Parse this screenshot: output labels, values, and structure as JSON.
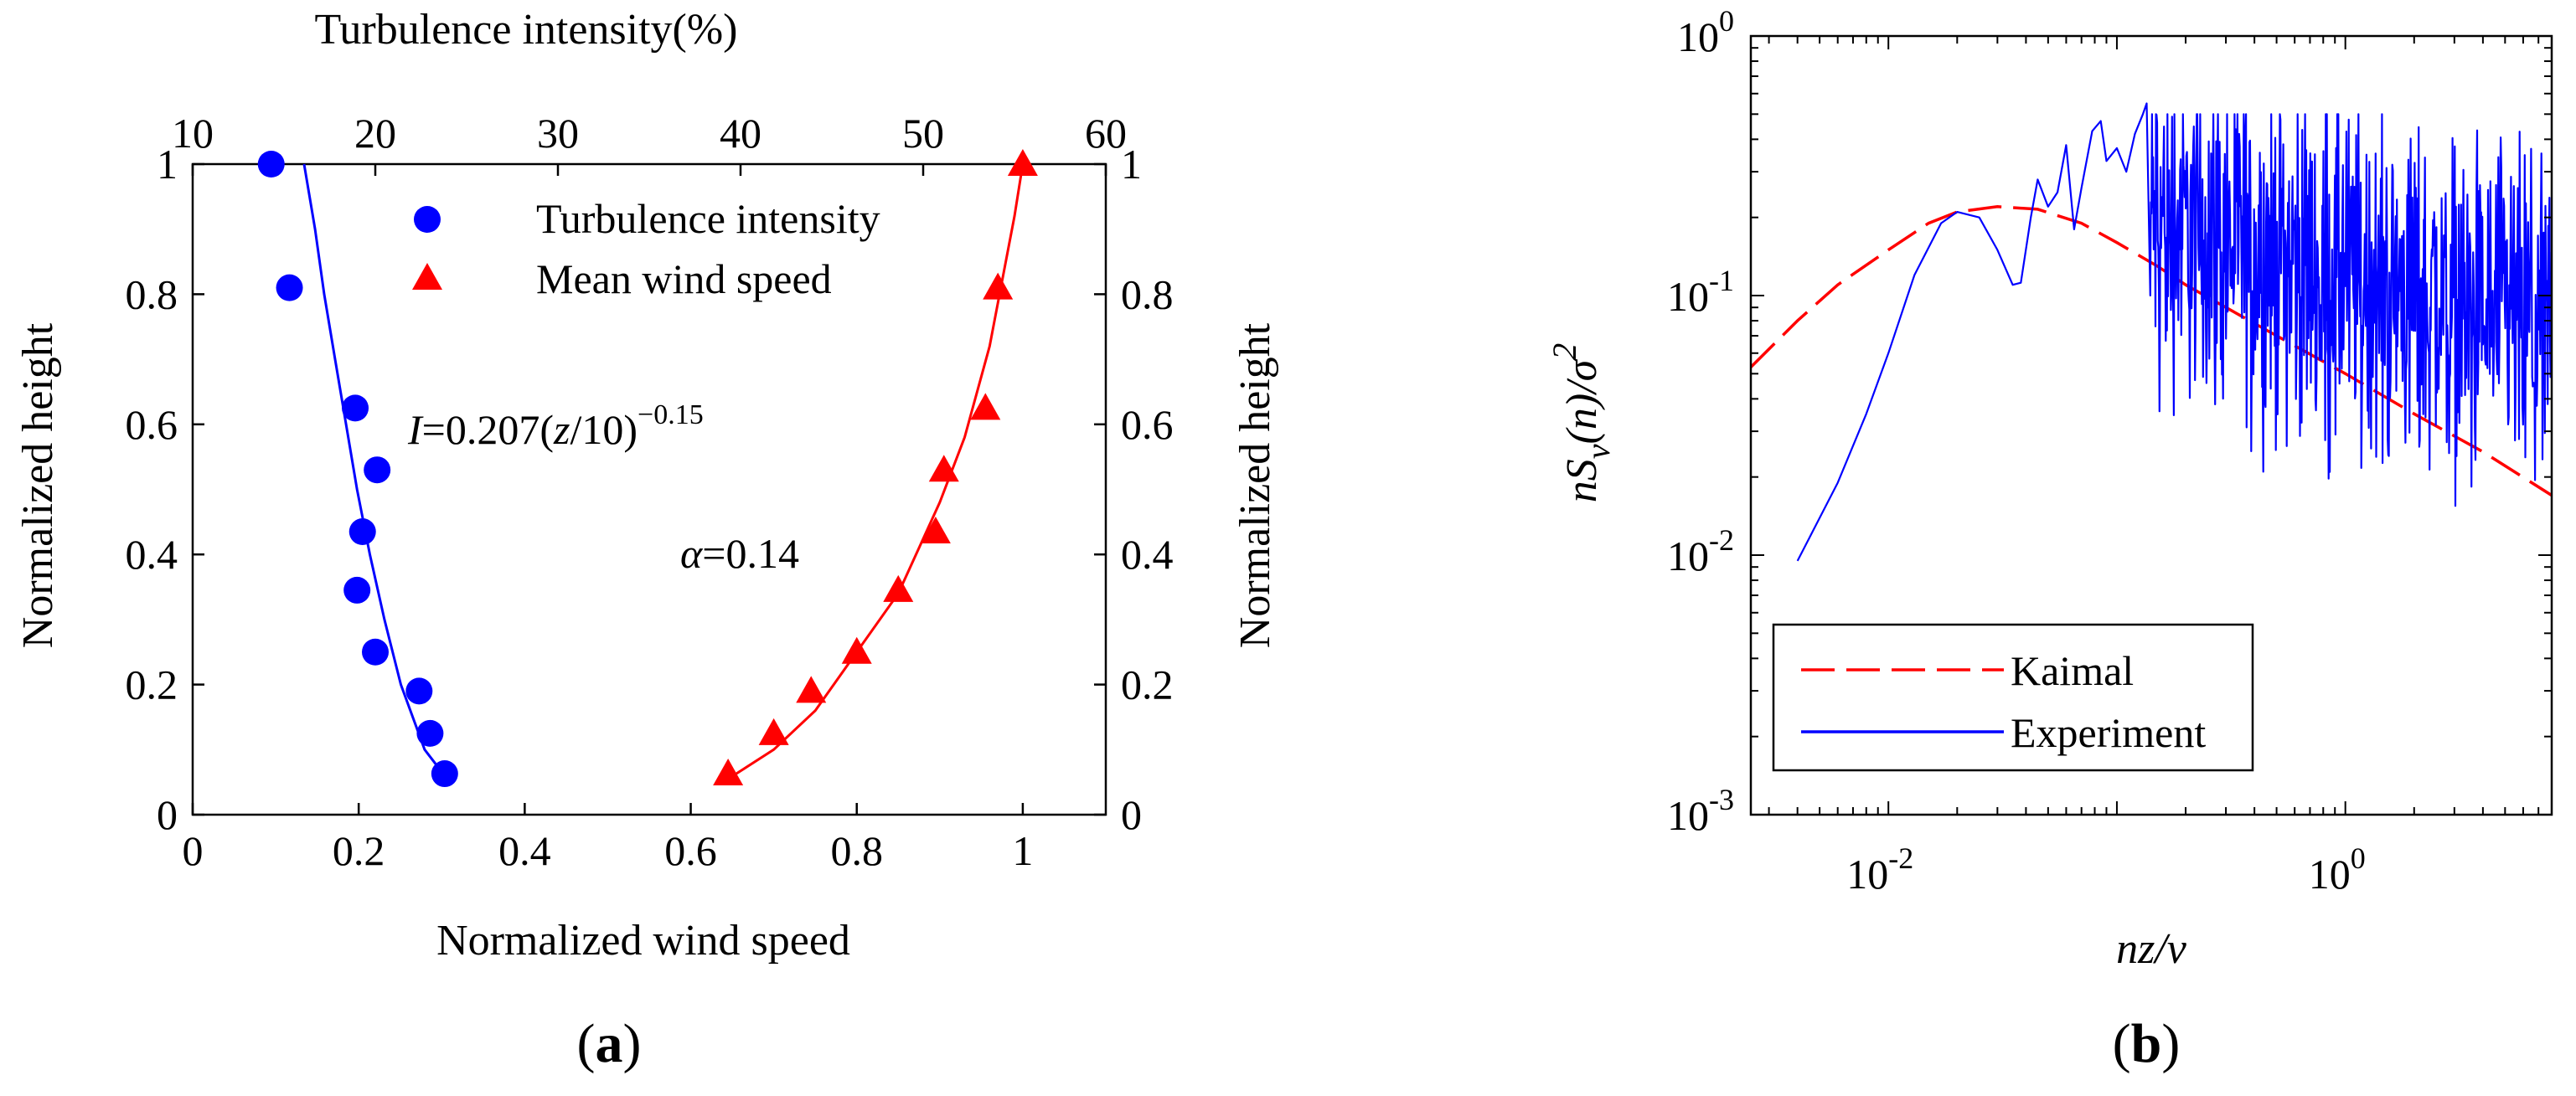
{
  "chart_data": [
    {
      "type": "scatter",
      "panel_label": "(a)",
      "panel_letter": "a",
      "xlabel": "Normalized wind speed",
      "ylabel": "Normalized height",
      "ylabel_right": "Normalized height",
      "top_xlabel": "Turbulence intensity(%)",
      "xlim": [
        0,
        1.1
      ],
      "ylim": [
        0,
        1
      ],
      "top_xlim": [
        10,
        60
      ],
      "x_ticks": [
        "0",
        "0.2",
        "0.4",
        "0.6",
        "0.8",
        "1"
      ],
      "y_ticks": [
        "0",
        "0.2",
        "0.4",
        "0.6",
        "0.8",
        "1"
      ],
      "top_x_ticks": [
        "10",
        "20",
        "30",
        "40",
        "50",
        "60"
      ],
      "annotation_power_law": {
        "prefix": "=0.207(",
        "var": "z",
        "mid": "/10)",
        "exp": "−0.15",
        "symbol": "I"
      },
      "annotation_alpha": {
        "symbol": "α",
        "value": "=0.14"
      },
      "series": [
        {
          "name": "Turbulence intensity",
          "color": "#0000ff",
          "marker": "circle",
          "x_axis": "top",
          "points": [
            [
              14.3,
              1.0
            ],
            [
              15.3,
              0.81
            ],
            [
              18.9,
              0.625
            ],
            [
              20.1,
              0.53
            ],
            [
              19.3,
              0.435
            ],
            [
              19.0,
              0.345
            ],
            [
              20.0,
              0.25
            ],
            [
              22.4,
              0.19
            ],
            [
              23.0,
              0.125
            ],
            [
              23.8,
              0.063
            ]
          ],
          "fit": [
            [
              16.1,
              1.0
            ],
            [
              16.7,
              0.9
            ],
            [
              17.2,
              0.8
            ],
            [
              17.8,
              0.7
            ],
            [
              18.4,
              0.6
            ],
            [
              19.0,
              0.5
            ],
            [
              19.7,
              0.4
            ],
            [
              20.5,
              0.3
            ],
            [
              21.4,
              0.2
            ],
            [
              22.7,
              0.1
            ],
            [
              23.8,
              0.06
            ]
          ]
        },
        {
          "name": "Mean wind speed",
          "color": "#ff0000",
          "marker": "triangle",
          "x_axis": "bottom",
          "points": [
            [
              0.645,
              0.063
            ],
            [
              0.7,
              0.125
            ],
            [
              0.745,
              0.19
            ],
            [
              0.8,
              0.25
            ],
            [
              0.85,
              0.345
            ],
            [
              0.895,
              0.435
            ],
            [
              0.905,
              0.53
            ],
            [
              0.955,
              0.625
            ],
            [
              0.97,
              0.81
            ],
            [
              1.0,
              1.0
            ]
          ],
          "fit": [
            [
              0.655,
              0.063
            ],
            [
              0.7,
              0.1
            ],
            [
              0.75,
              0.16
            ],
            [
              0.8,
              0.25
            ],
            [
              0.85,
              0.34
            ],
            [
              0.9,
              0.48
            ],
            [
              0.93,
              0.58
            ],
            [
              0.96,
              0.72
            ],
            [
              0.99,
              0.92
            ],
            [
              1.0,
              1.0
            ]
          ]
        }
      ]
    },
    {
      "type": "line",
      "panel_label": "(b)",
      "panel_letter": "b",
      "xlabel": "nz/v",
      "ylabel": "nS_v(n)/σ^2",
      "ylabel_parts": {
        "a": "nS",
        "sub": "v",
        "b": "(n)/",
        "sigma": "σ",
        "sup": "2"
      },
      "x_scale": "log",
      "y_scale": "log",
      "xlim": [
        0.0025,
        8
      ],
      "ylim": [
        0.001,
        1
      ],
      "x_ticks": [
        {
          "base": "10",
          "exp": "-2",
          "value": 0.01
        },
        {
          "base": "10",
          "exp": "0",
          "value": 1
        }
      ],
      "y_ticks": [
        {
          "base": "10",
          "exp": "0",
          "value": 1
        },
        {
          "base": "10",
          "exp": "-1",
          "value": 0.1
        },
        {
          "base": "10",
          "exp": "-2",
          "value": 0.01
        },
        {
          "base": "10",
          "exp": "-3",
          "value": 0.001
        }
      ],
      "legend_position": "bottom-left",
      "series": [
        {
          "name": "Kaimal",
          "color": "#ff0000",
          "dash": "dashed",
          "points": [
            [
              0.0025,
              0.053
            ],
            [
              0.004,
              0.08
            ],
            [
              0.006,
              0.11
            ],
            [
              0.01,
              0.15
            ],
            [
              0.015,
              0.19
            ],
            [
              0.02,
              0.21
            ],
            [
              0.03,
              0.22
            ],
            [
              0.045,
              0.215
            ],
            [
              0.07,
              0.19
            ],
            [
              0.1,
              0.16
            ],
            [
              0.15,
              0.13
            ],
            [
              0.2,
              0.11
            ],
            [
              0.3,
              0.09
            ],
            [
              0.5,
              0.07
            ],
            [
              1,
              0.05
            ],
            [
              2,
              0.035
            ],
            [
              4,
              0.025
            ],
            [
              8,
              0.017
            ]
          ]
        },
        {
          "name": "Experiment",
          "color": "#0000ff",
          "dash": "solid",
          "points": [
            [
              0.004,
              0.0095
            ],
            [
              0.006,
              0.019
            ],
            [
              0.008,
              0.035
            ],
            [
              0.01,
              0.06
            ],
            [
              0.013,
              0.12
            ],
            [
              0.017,
              0.19
            ],
            [
              0.02,
              0.21
            ],
            [
              0.025,
              0.2
            ],
            [
              0.03,
              0.15
            ],
            [
              0.035,
              0.11
            ],
            [
              0.038,
              0.112
            ],
            [
              0.042,
              0.2
            ],
            [
              0.045,
              0.28
            ],
            [
              0.05,
              0.22
            ],
            [
              0.055,
              0.25
            ],
            [
              0.06,
              0.38
            ],
            [
              0.065,
              0.18
            ],
            [
              0.07,
              0.26
            ],
            [
              0.078,
              0.43
            ],
            [
              0.085,
              0.47
            ],
            [
              0.09,
              0.33
            ],
            [
              0.1,
              0.37
            ],
            [
              0.11,
              0.3
            ],
            [
              0.12,
              0.42
            ],
            [
              0.13,
              0.5
            ],
            [
              0.135,
              0.55
            ],
            [
              0.14,
              0.1
            ]
          ],
          "noise": {
            "x_start": 0.14,
            "x_end": 8,
            "samples": 700,
            "trend_y0": 0.2,
            "trend_exponent": -0.25,
            "spread_dex": 0.32,
            "seed": 12345
          }
        }
      ]
    }
  ]
}
